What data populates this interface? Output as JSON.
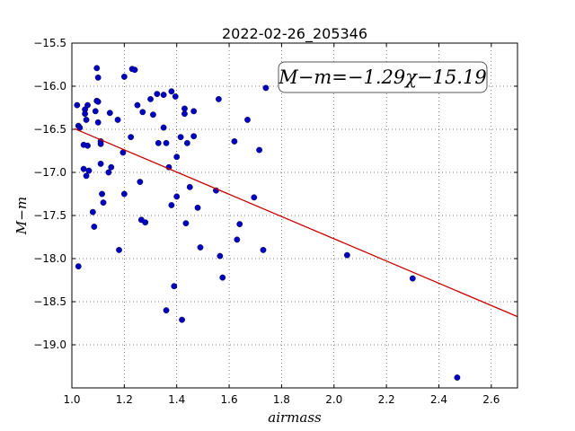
{
  "chart_data": {
    "type": "scatter",
    "title": "2022-02-26_205346",
    "xlabel": "airmass",
    "ylabel": "M−m",
    "xlim": [
      1.0,
      2.7
    ],
    "ylim": [
      -19.5,
      -15.5
    ],
    "y_inverted": false,
    "grid": true,
    "x_ticks": [
      "1.0",
      "1.2",
      "1.4",
      "1.6",
      "1.8",
      "2.0",
      "2.2",
      "2.4",
      "2.6"
    ],
    "y_ticks": [
      "−15.5",
      "−16.0",
      "−16.5",
      "−17.0",
      "−17.5",
      "−18.0",
      "−18.5",
      "−19.0"
    ],
    "point_color": "#0000bf",
    "fit_color": "#cc0000",
    "annotation": "M−m=−1.29χ−15.19",
    "fit": {
      "slope": -1.29,
      "intercept": -15.19,
      "x_range": [
        1.01,
        2.7
      ]
    },
    "series": [
      {
        "values": [
          [
            1.02,
            -16.22
          ],
          [
            1.025,
            -16.46
          ],
          [
            1.03,
            -16.48
          ],
          [
            1.045,
            -16.68
          ],
          [
            1.045,
            -16.96
          ],
          [
            1.05,
            -16.27
          ],
          [
            1.05,
            -16.32
          ],
          [
            1.055,
            -16.39
          ],
          [
            1.055,
            -17.04
          ],
          [
            1.06,
            -16.69
          ],
          [
            1.065,
            -16.98
          ],
          [
            1.06,
            -16.22
          ],
          [
            1.08,
            -17.46
          ],
          [
            1.085,
            -17.63
          ],
          [
            1.09,
            -16.29
          ],
          [
            1.095,
            -15.79
          ],
          [
            1.095,
            -16.17
          ],
          [
            1.1,
            -16.18
          ],
          [
            1.1,
            -15.9
          ],
          [
            1.1,
            -16.42
          ],
          [
            1.11,
            -16.64
          ],
          [
            1.11,
            -16.67
          ],
          [
            1.11,
            -16.9
          ],
          [
            1.115,
            -17.25
          ],
          [
            1.12,
            -17.35
          ],
          [
            1.14,
            -17.0
          ],
          [
            1.145,
            -16.31
          ],
          [
            1.15,
            -16.94
          ],
          [
            1.175,
            -16.39
          ],
          [
            1.18,
            -17.9
          ],
          [
            1.195,
            -16.77
          ],
          [
            1.2,
            -15.89
          ],
          [
            1.2,
            -17.25
          ],
          [
            1.225,
            -16.59
          ],
          [
            1.23,
            -15.8
          ],
          [
            1.24,
            -15.81
          ],
          [
            1.25,
            -16.22
          ],
          [
            1.26,
            -17.11
          ],
          [
            1.265,
            -17.55
          ],
          [
            1.27,
            -16.3
          ],
          [
            1.28,
            -17.58
          ],
          [
            1.3,
            -16.15
          ],
          [
            1.31,
            -16.33
          ],
          [
            1.325,
            -16.09
          ],
          [
            1.33,
            -16.66
          ],
          [
            1.35,
            -16.1
          ],
          [
            1.35,
            -16.48
          ],
          [
            1.36,
            -18.6
          ],
          [
            1.36,
            -16.66
          ],
          [
            1.37,
            -16.94
          ],
          [
            1.38,
            -16.06
          ],
          [
            1.38,
            -17.38
          ],
          [
            1.39,
            -18.32
          ],
          [
            1.395,
            -16.12
          ],
          [
            1.4,
            -17.28
          ],
          [
            1.4,
            -16.82
          ],
          [
            1.415,
            -16.59
          ],
          [
            1.42,
            -18.71
          ],
          [
            1.43,
            -16.32
          ],
          [
            1.43,
            -16.26
          ],
          [
            1.435,
            -17.59
          ],
          [
            1.44,
            -16.66
          ],
          [
            1.45,
            -17.17
          ],
          [
            1.465,
            -16.29
          ],
          [
            1.465,
            -16.58
          ],
          [
            1.48,
            -17.41
          ],
          [
            1.49,
            -17.87
          ],
          [
            1.55,
            -17.21
          ],
          [
            1.56,
            -16.15
          ],
          [
            1.565,
            -17.97
          ],
          [
            1.575,
            -18.22
          ],
          [
            1.62,
            -16.64
          ],
          [
            1.63,
            -17.78
          ],
          [
            1.64,
            -17.6
          ],
          [
            1.67,
            -16.39
          ],
          [
            1.695,
            -17.29
          ],
          [
            1.715,
            -16.74
          ],
          [
            1.73,
            -17.9
          ],
          [
            1.74,
            -16.02
          ],
          [
            2.05,
            -17.96
          ],
          [
            2.3,
            -18.23
          ],
          [
            2.47,
            -19.38
          ],
          [
            1.025,
            -18.09
          ]
        ]
      }
    ]
  }
}
